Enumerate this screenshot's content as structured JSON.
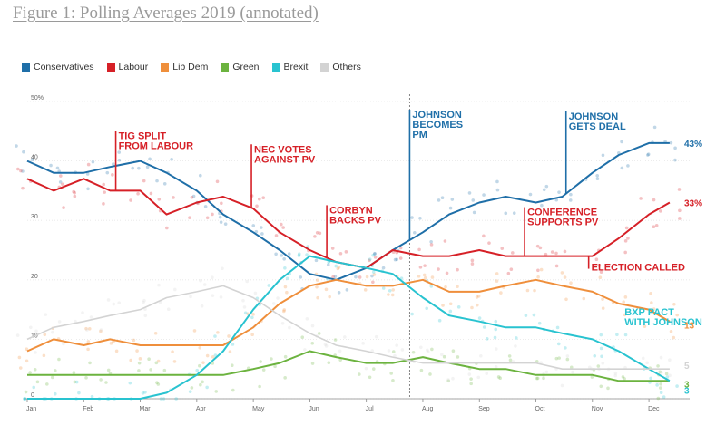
{
  "title": "Figure 1: Polling Averages 2019 (annotated)",
  "colors": {
    "Conservatives": "#1f6fa8",
    "Labour": "#d62027",
    "Lib Dem": "#ef8f3c",
    "Green": "#6cb33f",
    "Brexit": "#29c3d0",
    "Others": "#d3d3d3"
  },
  "chart_data": {
    "type": "line",
    "title": "",
    "xlabel": "",
    "ylabel": "",
    "ylim": [
      0,
      50
    ],
    "grid": true,
    "legend_position": "top-left",
    "x_tick_labels": [
      "Jan",
      "Feb",
      "Mar",
      "Apr",
      "May",
      "Jun",
      "Jul",
      "Aug",
      "Sep",
      "Oct",
      "Nov",
      "Dec"
    ],
    "y_tick_labels": [
      {
        "value": 50,
        "label": "50%"
      },
      {
        "value": 40,
        "label": "40"
      },
      {
        "value": 30,
        "label": "30"
      },
      {
        "value": 20,
        "label": "20"
      },
      {
        "value": 10,
        "label": "10"
      },
      {
        "value": 0,
        "label": "0"
      }
    ],
    "x": [
      "Jan 1",
      "Jan 15",
      "Feb 1",
      "Feb 15",
      "Mar 1",
      "Mar 15",
      "Apr 1",
      "Apr 15",
      "May 1",
      "May 15",
      "Jun 1",
      "Jun 15",
      "Jul 1",
      "Jul 15",
      "Aug 1",
      "Aug 15",
      "Sep 1",
      "Sep 15",
      "Oct 1",
      "Oct 15",
      "Nov 1",
      "Nov 15",
      "Dec 1",
      "Dec 12"
    ],
    "series": [
      {
        "name": "Conservatives",
        "values": [
          40,
          38,
          38,
          39,
          40,
          38,
          35,
          31,
          28,
          25,
          21,
          20,
          22,
          25,
          28,
          31,
          33,
          34,
          33,
          34,
          38,
          41,
          43,
          43
        ]
      },
      {
        "name": "Labour",
        "values": [
          37,
          35,
          37,
          35,
          35,
          31,
          33,
          34,
          32,
          28,
          25,
          23,
          22,
          25,
          24,
          24,
          25,
          24,
          24,
          24,
          24,
          27,
          31,
          33
        ]
      },
      {
        "name": "Lib Dem",
        "values": [
          8,
          10,
          9,
          10,
          9,
          9,
          9,
          9,
          12,
          16,
          19,
          20,
          19,
          19,
          20,
          18,
          18,
          19,
          20,
          19,
          18,
          16,
          15,
          13
        ]
      },
      {
        "name": "Green",
        "values": [
          4,
          4,
          4,
          4,
          4,
          4,
          4,
          4,
          5,
          6,
          8,
          7,
          6,
          6,
          7,
          6,
          5,
          5,
          4,
          4,
          4,
          3,
          3,
          3
        ]
      },
      {
        "name": "Brexit",
        "values": [
          0,
          0,
          0,
          0,
          0,
          1,
          4,
          8,
          15,
          20,
          24,
          23,
          22,
          21,
          17,
          14,
          13,
          12,
          12,
          11,
          10,
          8,
          5,
          3
        ]
      },
      {
        "name": "Others",
        "values": [
          10,
          12,
          13,
          14,
          15,
          17,
          18,
          19,
          17,
          14,
          11,
          9,
          8,
          7,
          6,
          6,
          6,
          6,
          6,
          5,
          5,
          5,
          5,
          5
        ]
      }
    ],
    "annotations": [
      {
        "x": "Feb 18",
        "series": "Labour",
        "color": "#d62027",
        "lines": [
          "TIG SPLIT",
          "FROM LABOUR"
        ]
      },
      {
        "x": "Apr 30",
        "series": "Labour",
        "color": "#d62027",
        "lines": [
          "NEC VOTES",
          "AGAINST PV"
        ]
      },
      {
        "x": "Jun 10",
        "series": "Labour",
        "color": "#d62027",
        "lines": [
          "CORBYN",
          "BACKS PV"
        ]
      },
      {
        "x": "Jul 24",
        "series": "Conservatives",
        "color": "#1f6fa8",
        "lines": [
          "JOHNSON",
          "BECOMES",
          "PM"
        ]
      },
      {
        "x": "Oct 17",
        "series": "Conservatives",
        "color": "#1f6fa8",
        "lines": [
          "JOHNSON",
          "GETS DEAL"
        ]
      },
      {
        "x": "Sep 25",
        "series": "Labour",
        "color": "#d62027",
        "lines": [
          "CONFERENCE",
          "SUPPORTS PV"
        ]
      },
      {
        "x": "Oct 29",
        "series": "Labour",
        "color": "#d62027",
        "lines": [
          "ELECTION CALLED"
        ]
      },
      {
        "x": "Nov 20",
        "series": "Brexit",
        "color": "#29c3d0",
        "lines": [
          "BXP PACT",
          "WITH JOHNSON"
        ]
      }
    ],
    "end_labels": [
      {
        "series": "Conservatives",
        "text": "43%"
      },
      {
        "series": "Labour",
        "text": "33%"
      },
      {
        "series": "Lib Dem",
        "text": "13"
      },
      {
        "series": "Others",
        "text": "5"
      },
      {
        "series": "Green",
        "text": "3"
      },
      {
        "series": "Brexit",
        "text": "3"
      }
    ]
  }
}
